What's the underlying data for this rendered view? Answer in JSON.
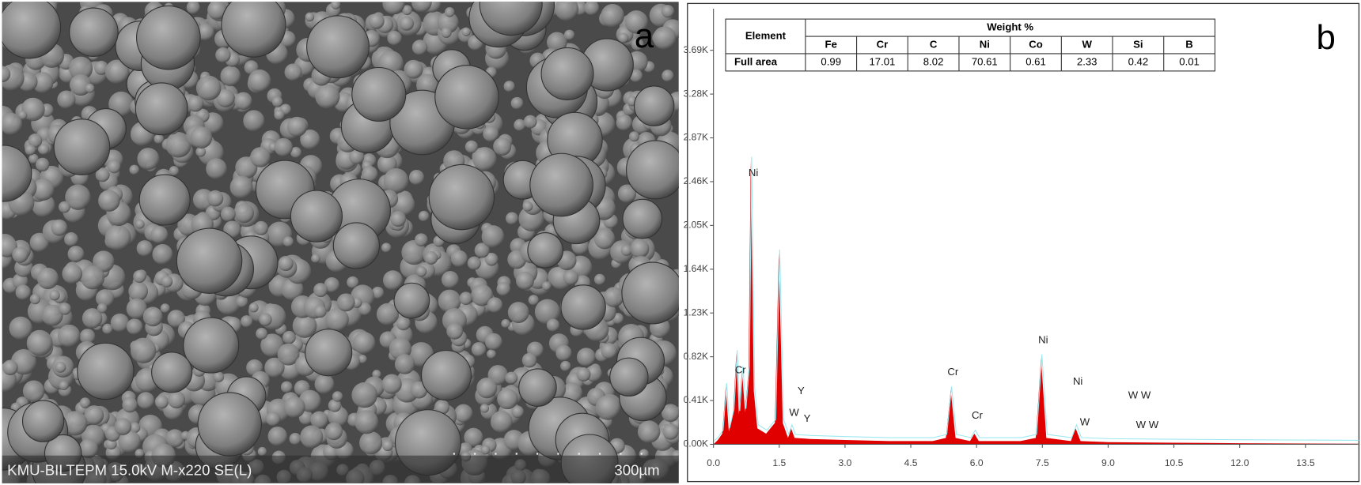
{
  "panel_a": {
    "label": "a",
    "caption": "KMU-BILTEPM 15.0kV M-x220 SE(L)",
    "scale_bar": "300µm"
  },
  "chart_data": {
    "type": "area",
    "panel_label": "b",
    "table": {
      "row_header": "Element",
      "group_header": "Weight %",
      "columns": [
        "Fe",
        "Cr",
        "C",
        "Ni",
        "Co",
        "W",
        "Si",
        "B"
      ],
      "row_label": "Full area",
      "values": [
        0.99,
        17.01,
        8.02,
        70.61,
        0.61,
        2.33,
        0.42,
        0.01
      ]
    },
    "x": [
      0.0,
      0.1,
      0.2,
      0.28,
      0.35,
      0.45,
      0.52,
      0.58,
      0.65,
      0.72,
      0.8,
      0.85,
      0.92,
      1.0,
      1.2,
      1.4,
      1.49,
      1.58,
      1.7,
      1.77,
      1.85,
      2.2,
      3.0,
      4.0,
      5.0,
      5.3,
      5.41,
      5.52,
      5.85,
      5.95,
      6.05,
      7.0,
      7.35,
      7.47,
      7.59,
      8.15,
      8.26,
      8.37,
      9.0,
      10.5,
      12.0,
      14.7
    ],
    "values": [
      0,
      40,
      100,
      540,
      120,
      300,
      850,
      280,
      700,
      300,
      700,
      2660,
      500,
      150,
      100,
      200,
      1790,
      200,
      60,
      150,
      60,
      50,
      40,
      30,
      30,
      60,
      510,
      60,
      30,
      100,
      30,
      30,
      60,
      810,
      60,
      30,
      150,
      30,
      20,
      15,
      10,
      5
    ],
    "color": "#e00000",
    "xlim": [
      0,
      14.7
    ],
    "ylim": [
      0,
      4080
    ],
    "xticks": [
      {
        "value": 0,
        "label": "0.0"
      },
      1.5,
      {
        "value": 3,
        "label": "3.0"
      },
      4.5,
      {
        "value": 6,
        "label": "6.0"
      },
      7.5,
      {
        "value": 9,
        "label": "9.0"
      },
      10.5,
      {
        "value": 12,
        "label": "12.0"
      },
      13.5
    ],
    "yticks": [
      {
        "value": 0,
        "label": "0.00K"
      },
      {
        "value": 410,
        "label": "0.41K"
      },
      {
        "value": 820,
        "label": "0.82K"
      },
      {
        "value": 1230,
        "label": "1.23K"
      },
      {
        "value": 1640,
        "label": "1.64K"
      },
      {
        "value": 2050,
        "label": "2.05K"
      },
      {
        "value": 2460,
        "label": "2.46K"
      },
      {
        "value": 2870,
        "label": "2.87K"
      },
      {
        "value": 3280,
        "label": "3.28K"
      },
      {
        "value": 3690,
        "label": "3.69K"
      }
    ],
    "annotations": [
      "Cr",
      "Ni",
      "Y",
      "W",
      "Y",
      "Cr",
      "Cr",
      "Ni",
      "Ni",
      "W",
      "W W",
      "W W"
    ]
  }
}
